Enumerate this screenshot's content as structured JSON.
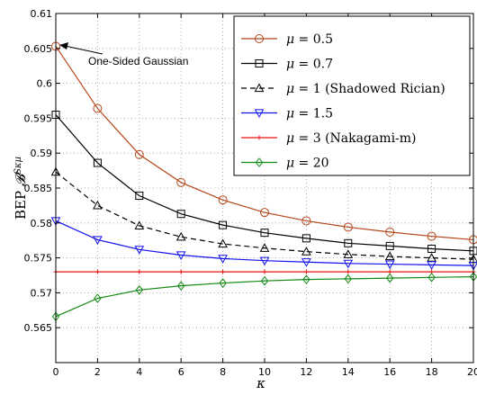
{
  "chart_data": {
    "type": "line",
    "xlabel": "κ",
    "ylabel": "BEP 𝓑^{Sκμ}",
    "ylabel_parts": {
      "prefix": "BEP ",
      "symbol": "𝓑",
      "superscript": "Sκμ"
    },
    "xlim": [
      0,
      20
    ],
    "ylim": [
      0.56,
      0.61
    ],
    "x_ticks": [
      "0",
      "2",
      "4",
      "6",
      "8",
      "10",
      "12",
      "14",
      "16",
      "18",
      "20"
    ],
    "y_ticks": [
      "0.565",
      "0.57",
      "0.575",
      "0.58",
      "0.585",
      "0.59",
      "0.595",
      "0.6",
      "0.605",
      "0.61"
    ],
    "y_tick_values": [
      0.565,
      0.57,
      0.575,
      0.58,
      0.585,
      0.59,
      0.595,
      0.6,
      0.605,
      0.61
    ],
    "grid": true,
    "legend_position": "top-right",
    "x": [
      0,
      2,
      4,
      6,
      8,
      10,
      12,
      14,
      16,
      18,
      20
    ],
    "series": [
      {
        "name": "μ = 0.5",
        "color": "#b5471b",
        "marker": "circle",
        "dash": "solid",
        "values": [
          0.6053,
          0.5964,
          0.5898,
          0.5858,
          0.5833,
          0.5815,
          0.5803,
          0.5794,
          0.5787,
          0.5781,
          0.5776
        ]
      },
      {
        "name": "μ = 0.7",
        "color": "#000000",
        "marker": "square",
        "dash": "solid",
        "values": [
          0.5955,
          0.5886,
          0.5839,
          0.5813,
          0.5797,
          0.5786,
          0.5778,
          0.5771,
          0.5767,
          0.5763,
          0.576
        ]
      },
      {
        "name": "μ = 1 (Shadowed Rician)",
        "color": "#000000",
        "marker": "triangle-up",
        "dash": "dashed",
        "values": [
          0.5873,
          0.5825,
          0.5796,
          0.578,
          0.577,
          0.5764,
          0.5759,
          0.5755,
          0.5752,
          0.575,
          0.5748
        ]
      },
      {
        "name": "μ = 1.5",
        "color": "#1111ee",
        "marker": "triangle-down",
        "dash": "solid",
        "values": [
          0.5803,
          0.5776,
          0.5762,
          0.5754,
          0.5749,
          0.5746,
          0.5744,
          0.5742,
          0.5741,
          0.574,
          0.5739
        ]
      },
      {
        "name": "μ = 3 (Nakagami-m)",
        "color": "#ee1111",
        "marker": "plus",
        "dash": "solid",
        "values": [
          0.573,
          0.573,
          0.573,
          0.573,
          0.573,
          0.573,
          0.573,
          0.573,
          0.573,
          0.573,
          0.573
        ]
      },
      {
        "name": "μ = 20",
        "color": "#138a13",
        "marker": "diamond",
        "dash": "solid",
        "values": [
          0.5666,
          0.5692,
          0.5704,
          0.571,
          0.5714,
          0.5717,
          0.5719,
          0.572,
          0.5721,
          0.5722,
          0.5723
        ]
      }
    ],
    "legend": [
      {
        "prefix": "μ = ",
        "value": "0.5",
        "suffix": ""
      },
      {
        "prefix": "μ = ",
        "value": "0.7",
        "suffix": ""
      },
      {
        "prefix": "μ = ",
        "value": "1",
        "suffix": " (Shadowed Rician)"
      },
      {
        "prefix": "μ = ",
        "value": "1.5",
        "suffix": ""
      },
      {
        "prefix": "μ = ",
        "value": "3",
        "suffix": " (Nakagami-m)"
      },
      {
        "prefix": "μ = ",
        "value": "20",
        "suffix": ""
      }
    ],
    "annotations": [
      {
        "text": "One-Sided Gaussian",
        "x": 0,
        "y": 0.6053
      }
    ]
  }
}
